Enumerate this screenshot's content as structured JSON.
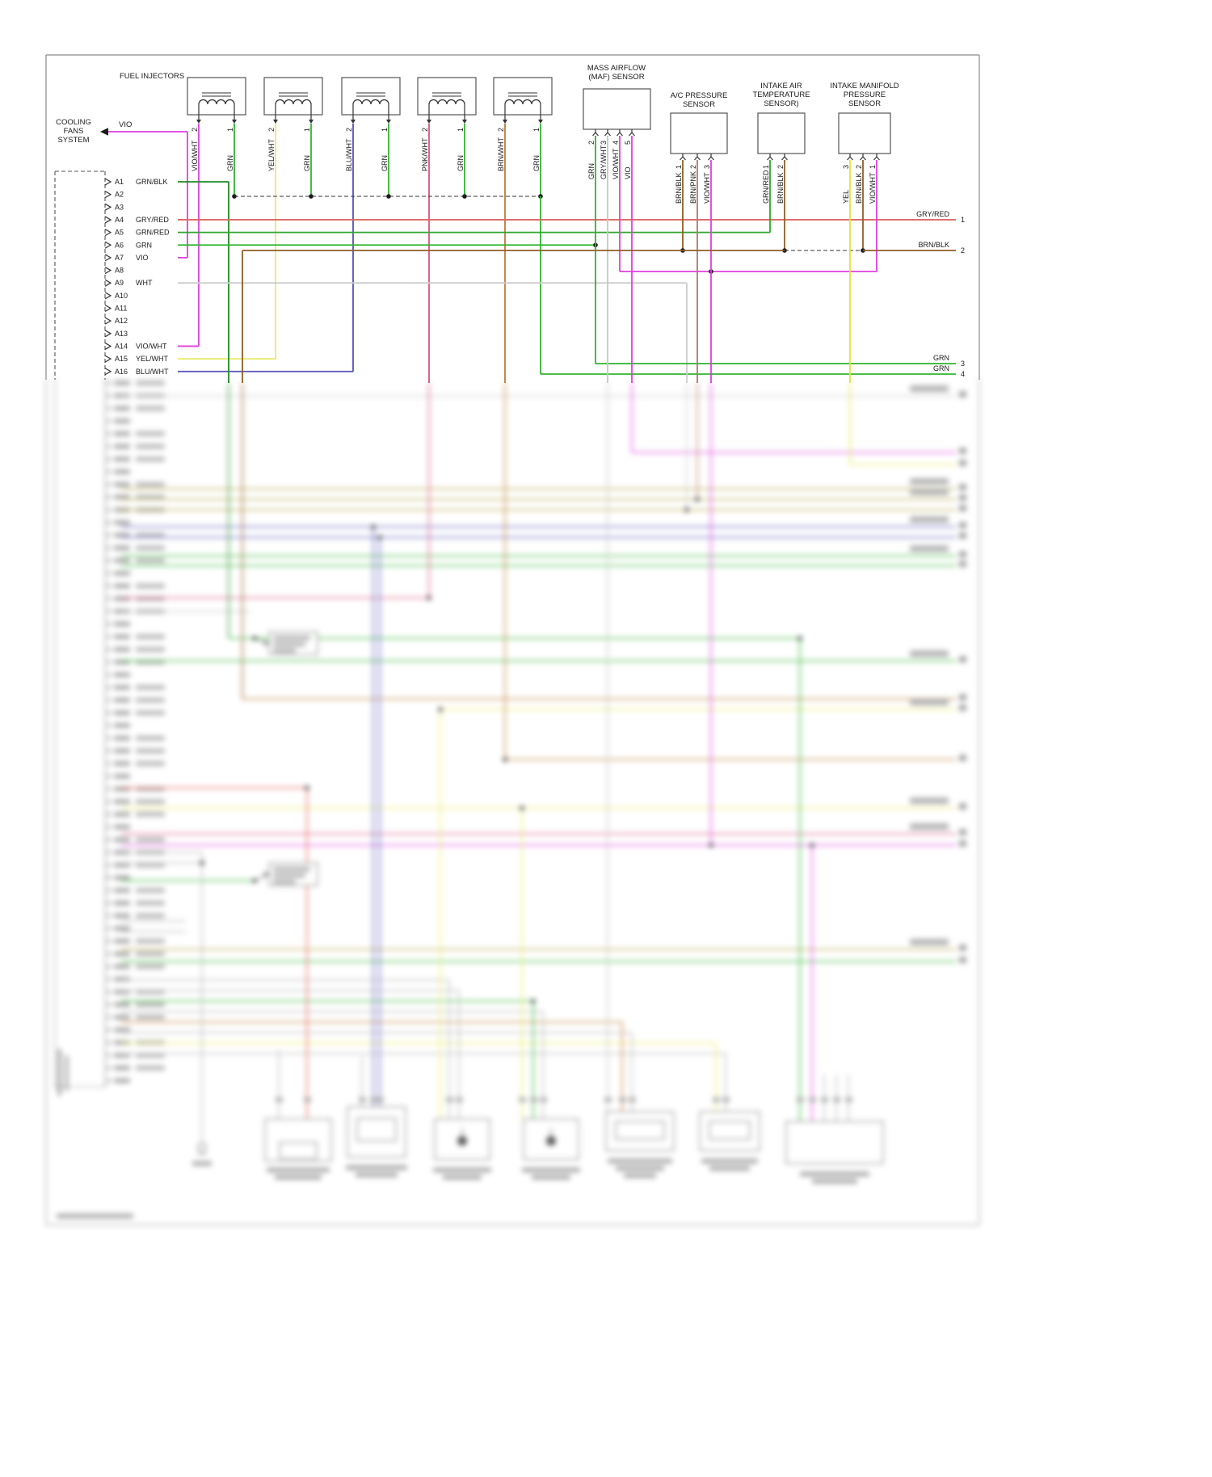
{
  "title_labels": {
    "fuel_injectors": "FUEL INJECTORS",
    "maf": "MASS AIRFLOW\n(MAF) SENSOR",
    "ac": "A/C PRESSURE\nSENSOR",
    "iat": "INTAKE AIR\nTEMPERATURE\nSENSOR)",
    "map": "INTAKE MANIFOLD\nPRESSURE\nSENSOR",
    "cooling": "COOLING\nFANS\nSYSTEM",
    "cooling_wire_color": "VIO"
  },
  "injectors": [
    {
      "pins": [
        {
          "num": "2",
          "color": "VIO/WHT"
        },
        {
          "num": "1",
          "color": "GRN"
        }
      ]
    },
    {
      "pins": [
        {
          "num": "2",
          "color": "YEL/WHT"
        },
        {
          "num": "1",
          "color": "GRN"
        }
      ]
    },
    {
      "pins": [
        {
          "num": "2",
          "color": "BLU/WHT"
        },
        {
          "num": "1",
          "color": "GRN"
        }
      ]
    },
    {
      "pins": [
        {
          "num": "2",
          "color": "PNK/WHT"
        },
        {
          "num": "1",
          "color": "GRN"
        }
      ]
    },
    {
      "pins": [
        {
          "num": "2",
          "color": "BRN/WHT"
        },
        {
          "num": "1",
          "color": "GRN"
        }
      ]
    }
  ],
  "sensors": {
    "maf_pins": [
      {
        "num": "2",
        "color": "GRN"
      },
      {
        "num": "3",
        "color": "GRY/WHT"
      },
      {
        "num": "4",
        "color": "VIO/WHT"
      },
      {
        "num": "5",
        "color": "VIO"
      }
    ],
    "ac_pins": [
      {
        "num": "1",
        "color": "BRN/BLK"
      },
      {
        "num": "2",
        "color": "BRN/PNK"
      },
      {
        "num": "3",
        "color": "VIO/WHT"
      }
    ],
    "iat_pins": [
      {
        "num": "1",
        "color": "GRN/RED"
      },
      {
        "num": "2",
        "color": "BRN/BLK"
      }
    ],
    "map_pins": [
      {
        "num": "3",
        "color": "YEL"
      },
      {
        "num": "2",
        "color": "BRN/BLK"
      },
      {
        "num": "1",
        "color": "VIO/WHT"
      }
    ]
  },
  "ecm_connector": {
    "pins": [
      {
        "pin": "A1",
        "color": "GRN/BLK"
      },
      {
        "pin": "A2",
        "color": ""
      },
      {
        "pin": "A3",
        "color": ""
      },
      {
        "pin": "A4",
        "color": "GRY/RED"
      },
      {
        "pin": "A5",
        "color": "GRN/RED"
      },
      {
        "pin": "A6",
        "color": "GRN"
      },
      {
        "pin": "A7",
        "color": "VIO"
      },
      {
        "pin": "A8",
        "color": ""
      },
      {
        "pin": "A9",
        "color": "WHT"
      },
      {
        "pin": "A10",
        "color": ""
      },
      {
        "pin": "A11",
        "color": ""
      },
      {
        "pin": "A12",
        "color": ""
      },
      {
        "pin": "A13",
        "color": ""
      },
      {
        "pin": "A14",
        "color": "VIO/WHT"
      },
      {
        "pin": "A15",
        "color": "YEL/WHT"
      },
      {
        "pin": "A16",
        "color": "BLU/WHT"
      }
    ]
  },
  "right_edge_wires": [
    {
      "label": "GRY/RED",
      "num": "1"
    },
    {
      "label": "BRN/BLK",
      "num": "2"
    },
    {
      "label": "GRN",
      "num": "3"
    },
    {
      "label": "GRN",
      "num": "4"
    }
  ],
  "wire_colors": {
    "VIO": "#e03ee0",
    "VIO/WHT": "#e03ee0",
    "GRN": "#2eb42e",
    "GRN/BLK": "#208a20",
    "GRN/RED": "#2fa42f",
    "YEL": "#e2e23e",
    "YEL/WHT": "#eaea66",
    "BLU/WHT": "#5353bb",
    "PNK/WHT": "#d85480",
    "BRN/WHT": "#c07c34",
    "GRY/RED": "#dc6a66",
    "WHT": "#cdcdcd",
    "BRN/BLK": "#8f5e26",
    "BRN/PNK": "#b4786a",
    "GRY/WHT": "#c6c6c6",
    "OLV": "#b5a33f",
    "RED": "#e25848",
    "GRY": "#b9b9b9"
  }
}
